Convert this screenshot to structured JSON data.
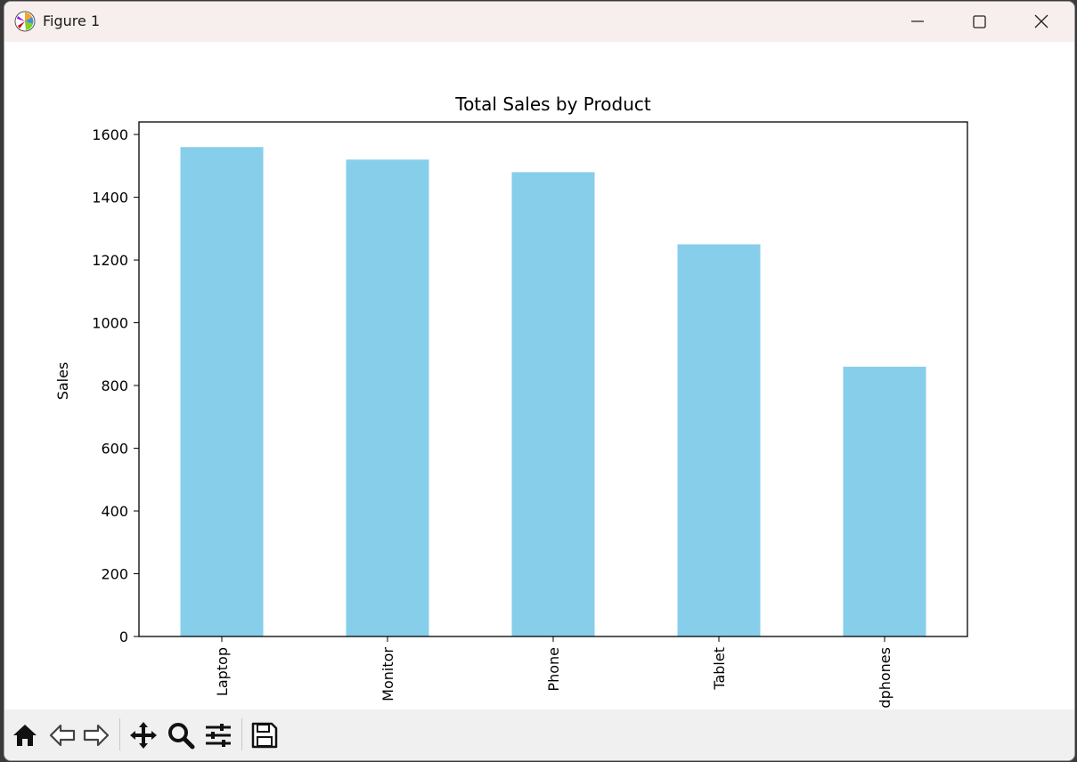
{
  "window": {
    "title": "Figure 1",
    "icon": "matplotlib-logo-icon"
  },
  "title_buttons": {
    "minimize": "minimize-icon",
    "maximize": "maximize-icon",
    "close": "close-icon"
  },
  "toolbar": {
    "tools": [
      "home-icon",
      "back-arrow-icon",
      "forward-arrow-icon",
      "pan-icon",
      "zoom-icon",
      "configure-subplots-icon",
      "save-icon"
    ]
  },
  "chart_data": {
    "type": "bar",
    "title": "Total Sales by Product",
    "xlabel": "",
    "ylabel": "Sales",
    "categories": [
      "Laptop",
      "Monitor",
      "Phone",
      "Tablet",
      "Headphones"
    ],
    "values": [
      1560,
      1520,
      1480,
      1250,
      860
    ],
    "ylim": [
      0,
      1640
    ],
    "yticks": [
      0,
      200,
      400,
      600,
      800,
      1000,
      1200,
      1400,
      1600
    ],
    "bar_color": "#87ceeb",
    "grid": false,
    "legend": "none"
  }
}
